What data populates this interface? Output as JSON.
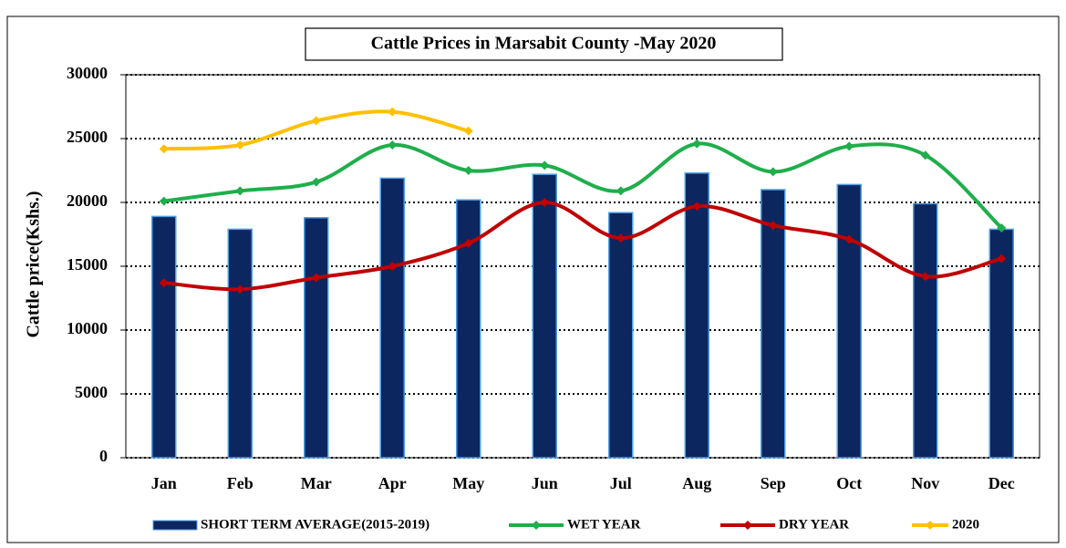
{
  "chart_data": {
    "type": "bar-line",
    "title": "Cattle Prices in Marsabit County -May 2020",
    "ylabel": "Cattle price(Kshs.)",
    "categories": [
      "Jan",
      "Feb",
      "Mar",
      "Apr",
      "May",
      "Jun",
      "Jul",
      "Aug",
      "Sep",
      "Oct",
      "Nov",
      "Dec"
    ],
    "ylim": [
      0,
      30000
    ],
    "yticks": [
      0,
      5000,
      10000,
      15000,
      20000,
      25000,
      30000
    ],
    "grid": true,
    "legend": "bottom",
    "series": [
      {
        "name": "SHORT TERM AVERAGE(2015-2019)",
        "type": "bar",
        "color": "#0c2660",
        "values": [
          18900,
          17900,
          18800,
          21900,
          20200,
          22200,
          19200,
          22300,
          21000,
          21400,
          19900,
          17900
        ]
      },
      {
        "name": "WET YEAR",
        "type": "line",
        "color": "#1fae4b",
        "values": [
          20100,
          20900,
          21600,
          24500,
          22500,
          22900,
          20900,
          24600,
          22400,
          24400,
          23700,
          18000
        ]
      },
      {
        "name": "DRY YEAR",
        "type": "line",
        "color": "#c00000",
        "values": [
          13700,
          13200,
          14100,
          15000,
          16800,
          20000,
          17200,
          19700,
          18200,
          17100,
          14200,
          15600
        ]
      },
      {
        "name": "2020",
        "type": "line",
        "color": "#ffc000",
        "values": [
          24200,
          24500,
          26400,
          27100,
          25600,
          null,
          null,
          null,
          null,
          null,
          null,
          null
        ]
      }
    ]
  }
}
